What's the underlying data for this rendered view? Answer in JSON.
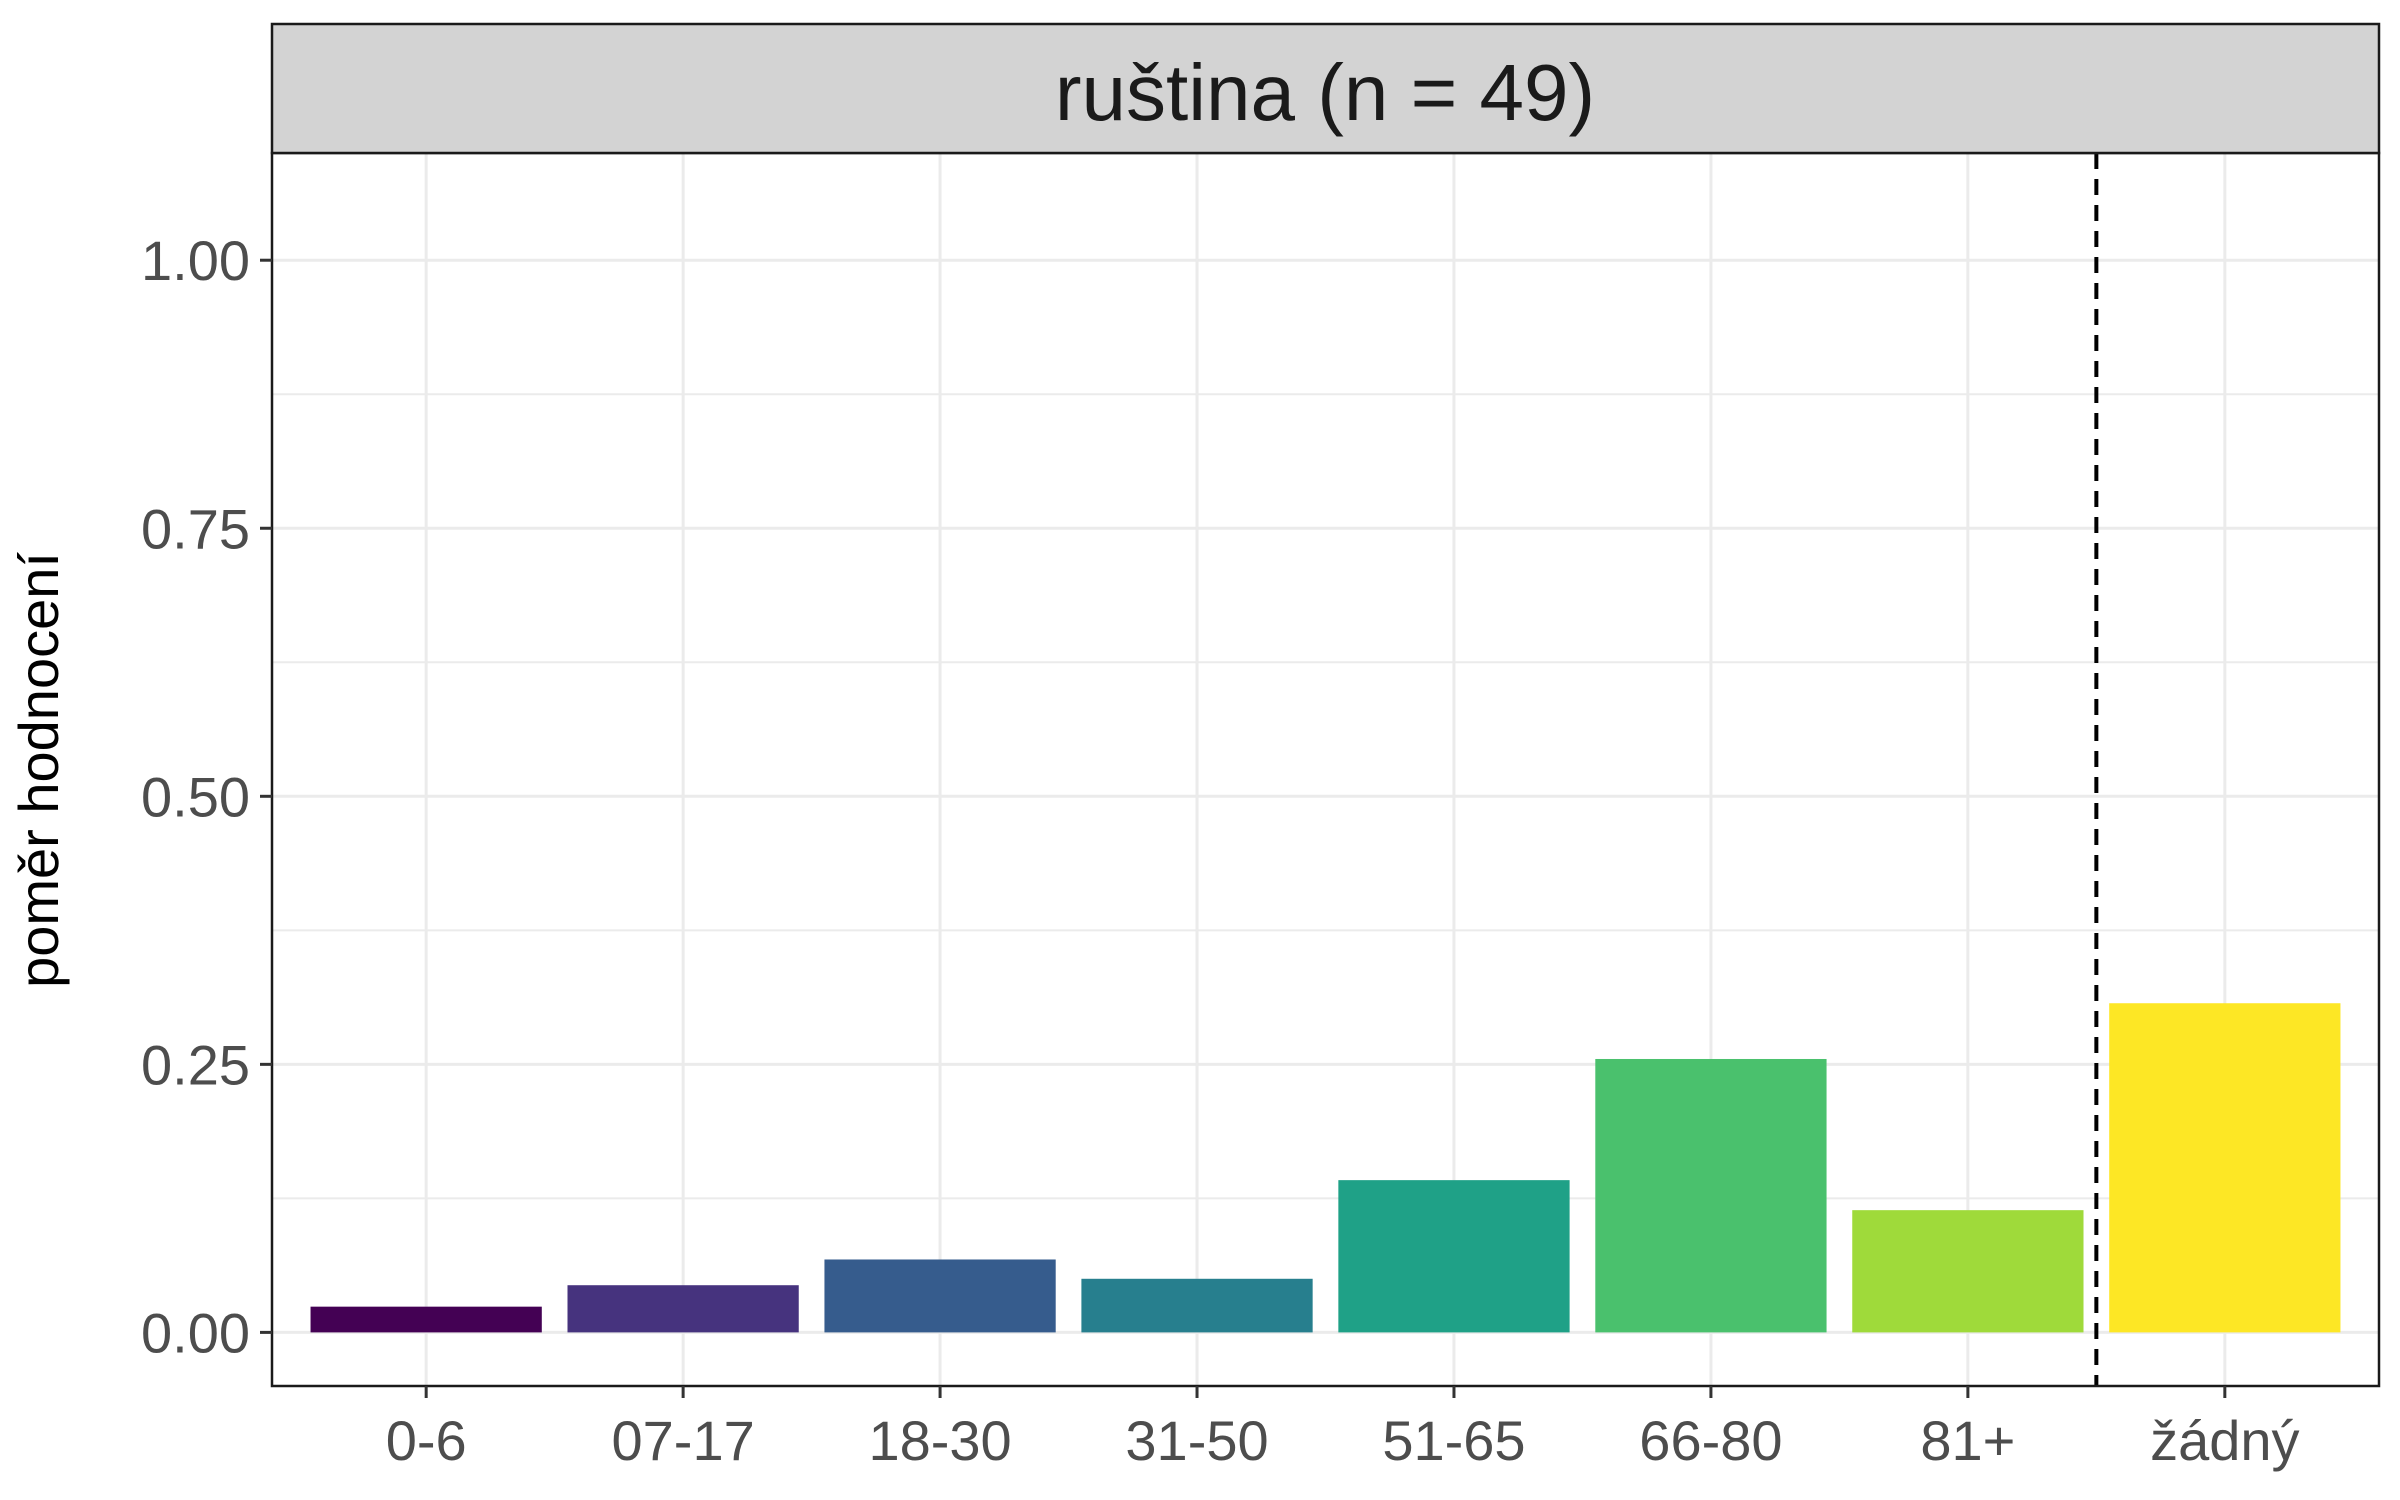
{
  "chart_data": {
    "type": "bar",
    "title": "ruština (n = 49)",
    "xlabel": "",
    "ylabel": "poměr hodnocení",
    "categories": [
      "0-6",
      "07-17",
      "18-30",
      "31-50",
      "51-65",
      "66-80",
      "81+",
      "žádný"
    ],
    "values": [
      0.024,
      0.044,
      0.068,
      0.05,
      0.142,
      0.255,
      0.114,
      0.307
    ],
    "colors": [
      "#440154",
      "#46337E",
      "#365C8D",
      "#277F8E",
      "#1FA187",
      "#4AC16D",
      "#9FDA3A",
      "#FDE725"
    ],
    "ylim": [
      -0.05,
      1.1
    ],
    "yticks": [
      0.0,
      0.25,
      0.5,
      0.75,
      1.0
    ],
    "ytick_labels": [
      "0.00",
      "0.25",
      "0.50",
      "0.75",
      "1.00"
    ],
    "separator_after_category": "81+",
    "grid": true,
    "legend": "none",
    "panel_background": "#ffffff",
    "strip_background": "#d3d3d3",
    "grid_color": "#ebebeb"
  }
}
